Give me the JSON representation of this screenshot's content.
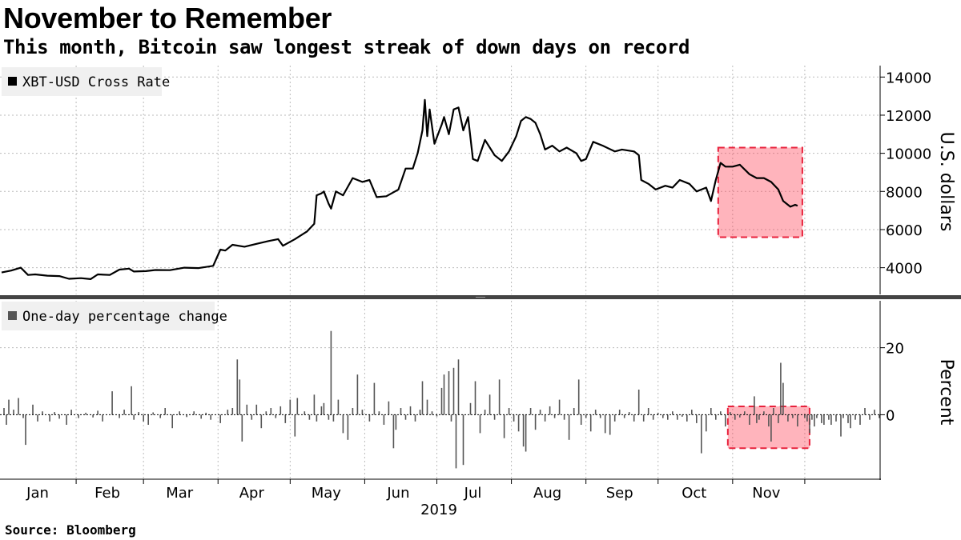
{
  "title": "November to Remember",
  "subtitle": "This month, Bitcoin saw longest streak of down days on record",
  "source": "Source: Bloomberg",
  "chart_data": [
    {
      "type": "line",
      "legend": "XBT-USD Cross Rate",
      "legend_position": "top-left",
      "ylabel": "U.S. dollars",
      "ylim": [
        2600,
        14600
      ],
      "yticks": [
        "4000",
        "6000",
        "8000",
        "10000",
        "12000",
        "14000"
      ],
      "grid": true,
      "color": "#000000",
      "highlight": {
        "x_start": "2019-10-26",
        "x_end": "2019-11-30",
        "y_start": 5600,
        "y_end": 10300,
        "color": "#ff3b4e"
      },
      "points": [
        [
          "2019-01-01",
          3750
        ],
        [
          "2019-01-05",
          3850
        ],
        [
          "2019-01-09",
          4000
        ],
        [
          "2019-01-12",
          3620
        ],
        [
          "2019-01-15",
          3650
        ],
        [
          "2019-01-20",
          3580
        ],
        [
          "2019-01-25",
          3560
        ],
        [
          "2019-01-29",
          3420
        ],
        [
          "2019-02-03",
          3450
        ],
        [
          "2019-02-07",
          3400
        ],
        [
          "2019-02-10",
          3650
        ],
        [
          "2019-02-15",
          3620
        ],
        [
          "2019-02-19",
          3900
        ],
        [
          "2019-02-23",
          3950
        ],
        [
          "2019-02-25",
          3800
        ],
        [
          "2019-03-02",
          3820
        ],
        [
          "2019-03-06",
          3880
        ],
        [
          "2019-03-12",
          3870
        ],
        [
          "2019-03-18",
          4000
        ],
        [
          "2019-03-24",
          3980
        ],
        [
          "2019-03-30",
          4100
        ],
        [
          "2019-04-02",
          4950
        ],
        [
          "2019-04-04",
          4900
        ],
        [
          "2019-04-07",
          5200
        ],
        [
          "2019-04-12",
          5100
        ],
        [
          "2019-04-17",
          5250
        ],
        [
          "2019-04-22",
          5400
        ],
        [
          "2019-04-26",
          5500
        ],
        [
          "2019-04-28",
          5150
        ],
        [
          "2019-05-03",
          5500
        ],
        [
          "2019-05-08",
          5900
        ],
        [
          "2019-05-11",
          6300
        ],
        [
          "2019-05-12",
          7800
        ],
        [
          "2019-05-14",
          7900
        ],
        [
          "2019-05-15",
          8000
        ],
        [
          "2019-05-17",
          7350
        ],
        [
          "2019-05-18",
          7100
        ],
        [
          "2019-05-20",
          8000
        ],
        [
          "2019-05-23",
          7800
        ],
        [
          "2019-05-27",
          8700
        ],
        [
          "2019-05-31",
          8500
        ],
        [
          "2019-06-03",
          8600
        ],
        [
          "2019-06-06",
          7700
        ],
        [
          "2019-06-10",
          7750
        ],
        [
          "2019-06-15",
          8100
        ],
        [
          "2019-06-18",
          9200
        ],
        [
          "2019-06-21",
          9200
        ],
        [
          "2019-06-23",
          10000
        ],
        [
          "2019-06-25",
          11200
        ],
        [
          "2019-06-26",
          12800
        ],
        [
          "2019-06-27",
          10900
        ],
        [
          "2019-06-28",
          12300
        ],
        [
          "2019-06-30",
          10500
        ],
        [
          "2019-07-03",
          11500
        ],
        [
          "2019-07-04",
          11900
        ],
        [
          "2019-07-06",
          11000
        ],
        [
          "2019-07-08",
          12300
        ],
        [
          "2019-07-10",
          12400
        ],
        [
          "2019-07-12",
          11200
        ],
        [
          "2019-07-14",
          11900
        ],
        [
          "2019-07-16",
          9700
        ],
        [
          "2019-07-18",
          9600
        ],
        [
          "2019-07-21",
          10700
        ],
        [
          "2019-07-25",
          9900
        ],
        [
          "2019-07-28",
          9600
        ],
        [
          "2019-07-31",
          10100
        ],
        [
          "2019-08-03",
          10900
        ],
        [
          "2019-08-05",
          11700
        ],
        [
          "2019-08-07",
          11900
        ],
        [
          "2019-08-09",
          11800
        ],
        [
          "2019-08-11",
          11600
        ],
        [
          "2019-08-13",
          11000
        ],
        [
          "2019-08-15",
          10200
        ],
        [
          "2019-08-18",
          10400
        ],
        [
          "2019-08-21",
          10100
        ],
        [
          "2019-08-24",
          10300
        ],
        [
          "2019-08-28",
          10000
        ],
        [
          "2019-08-30",
          9600
        ],
        [
          "2019-09-01",
          9700
        ],
        [
          "2019-09-04",
          10600
        ],
        [
          "2019-09-08",
          10400
        ],
        [
          "2019-09-13",
          10100
        ],
        [
          "2019-09-16",
          10200
        ],
        [
          "2019-09-21",
          10100
        ],
        [
          "2019-09-23",
          9900
        ],
        [
          "2019-09-24",
          8600
        ],
        [
          "2019-09-27",
          8400
        ],
        [
          "2019-09-30",
          8100
        ],
        [
          "2019-10-04",
          8300
        ],
        [
          "2019-10-07",
          8200
        ],
        [
          "2019-10-10",
          8600
        ],
        [
          "2019-10-14",
          8400
        ],
        [
          "2019-10-17",
          8000
        ],
        [
          "2019-10-21",
          8200
        ],
        [
          "2019-10-23",
          7500
        ],
        [
          "2019-10-25",
          8600
        ],
        [
          "2019-10-27",
          9500
        ],
        [
          "2019-10-29",
          9300
        ],
        [
          "2019-11-01",
          9300
        ],
        [
          "2019-11-04",
          9400
        ],
        [
          "2019-11-08",
          8900
        ],
        [
          "2019-11-11",
          8700
        ],
        [
          "2019-11-14",
          8700
        ],
        [
          "2019-11-17",
          8500
        ],
        [
          "2019-11-20",
          8100
        ],
        [
          "2019-11-22",
          7500
        ],
        [
          "2019-11-25",
          7200
        ],
        [
          "2019-11-27",
          7300
        ],
        [
          "2019-11-28",
          7250
        ]
      ]
    },
    {
      "type": "bar",
      "legend": "One-day percentage change",
      "legend_position": "top-left",
      "ylabel": "Percent",
      "ylim": [
        -19,
        34
      ],
      "yticks": [
        "0",
        "20"
      ],
      "grid": true,
      "color": "#555555",
      "highlight": {
        "x_start": "2019-10-30",
        "x_end": "2019-12-03",
        "y_start": -10,
        "y_end": 2.5,
        "color": "#ff3b4e"
      },
      "points": [
        [
          "2019-01-02",
          2
        ],
        [
          "2019-01-03",
          -3
        ],
        [
          "2019-01-04",
          4.5
        ],
        [
          "2019-01-06",
          1.5
        ],
        [
          "2019-01-08",
          5
        ],
        [
          "2019-01-10",
          -1
        ],
        [
          "2019-01-11",
          -9
        ],
        [
          "2019-01-14",
          3
        ],
        [
          "2019-01-16",
          -2
        ],
        [
          "2019-01-18",
          1
        ],
        [
          "2019-01-21",
          -2
        ],
        [
          "2019-01-23",
          0.8
        ],
        [
          "2019-01-25",
          -1.2
        ],
        [
          "2019-01-28",
          -3
        ],
        [
          "2019-01-30",
          1.5
        ],
        [
          "2019-02-02",
          -1
        ],
        [
          "2019-02-05",
          0.6
        ],
        [
          "2019-02-08",
          -0.8
        ],
        [
          "2019-02-10",
          1.2
        ],
        [
          "2019-02-12",
          -2
        ],
        [
          "2019-02-16",
          7
        ],
        [
          "2019-02-19",
          -1
        ],
        [
          "2019-02-21",
          1.5
        ],
        [
          "2019-02-24",
          8.5
        ],
        [
          "2019-02-25",
          -1.5
        ],
        [
          "2019-02-27",
          0.8
        ],
        [
          "2019-03-01",
          -2
        ],
        [
          "2019-03-03",
          -3
        ],
        [
          "2019-03-05",
          0.7
        ],
        [
          "2019-03-08",
          -1
        ],
        [
          "2019-03-10",
          2
        ],
        [
          "2019-03-13",
          -4
        ],
        [
          "2019-03-16",
          1
        ],
        [
          "2019-03-19",
          -0.7
        ],
        [
          "2019-03-22",
          1
        ],
        [
          "2019-03-25",
          -1.2
        ],
        [
          "2019-03-27",
          0.6
        ],
        [
          "2019-03-29",
          -1.5
        ],
        [
          "2019-04-02",
          -2.5
        ],
        [
          "2019-04-05",
          1.5
        ],
        [
          "2019-04-07",
          2
        ],
        [
          "2019-04-09",
          16.5
        ],
        [
          "2019-04-10",
          10.5
        ],
        [
          "2019-04-11",
          -8
        ],
        [
          "2019-04-13",
          3
        ],
        [
          "2019-04-15",
          -1.5
        ],
        [
          "2019-04-17",
          3
        ],
        [
          "2019-04-19",
          -4
        ],
        [
          "2019-04-21",
          1
        ],
        [
          "2019-04-23",
          2
        ],
        [
          "2019-04-25",
          -1
        ],
        [
          "2019-04-27",
          2.5
        ],
        [
          "2019-04-29",
          -2.5
        ],
        [
          "2019-05-01",
          4.5
        ],
        [
          "2019-05-03",
          -6.5
        ],
        [
          "2019-05-04",
          5
        ],
        [
          "2019-05-07",
          1
        ],
        [
          "2019-05-09",
          -1.5
        ],
        [
          "2019-05-11",
          6
        ],
        [
          "2019-05-12",
          -2
        ],
        [
          "2019-05-14",
          2.5
        ],
        [
          "2019-05-15",
          3.5
        ],
        [
          "2019-05-17",
          -1.5
        ],
        [
          "2019-05-18",
          25
        ],
        [
          "2019-05-19",
          -2
        ],
        [
          "2019-05-21",
          4.5
        ],
        [
          "2019-05-23",
          -5.5
        ],
        [
          "2019-05-25",
          -7.5
        ],
        [
          "2019-05-27",
          2
        ],
        [
          "2019-05-29",
          12
        ],
        [
          "2019-05-31",
          1.5
        ],
        [
          "2019-06-03",
          -2
        ],
        [
          "2019-06-05",
          9.5
        ],
        [
          "2019-06-07",
          1
        ],
        [
          "2019-06-09",
          -3
        ],
        [
          "2019-06-11",
          4
        ],
        [
          "2019-06-13",
          -10
        ],
        [
          "2019-06-14",
          -4.5
        ],
        [
          "2019-06-16",
          2
        ],
        [
          "2019-06-18",
          -1.5
        ],
        [
          "2019-06-20",
          2.5
        ],
        [
          "2019-06-22",
          -2
        ],
        [
          "2019-06-24",
          1.5
        ],
        [
          "2019-06-25",
          10
        ],
        [
          "2019-06-27",
          4.5
        ],
        [
          "2019-06-29",
          1
        ],
        [
          "2019-07-01",
          -0.5
        ],
        [
          "2019-07-03",
          8
        ],
        [
          "2019-07-04",
          12
        ],
        [
          "2019-07-06",
          13
        ],
        [
          "2019-07-07",
          -2
        ],
        [
          "2019-07-08",
          14
        ],
        [
          "2019-07-09",
          -16
        ],
        [
          "2019-07-10",
          16.5
        ],
        [
          "2019-07-12",
          -15
        ],
        [
          "2019-07-15",
          3.5
        ],
        [
          "2019-07-17",
          10
        ],
        [
          "2019-07-19",
          -5.5
        ],
        [
          "2019-07-21",
          1.5
        ],
        [
          "2019-07-23",
          6
        ],
        [
          "2019-07-25",
          -1.5
        ],
        [
          "2019-07-27",
          10.5
        ],
        [
          "2019-07-29",
          -7
        ],
        [
          "2019-07-31",
          2
        ],
        [
          "2019-08-02",
          -2
        ],
        [
          "2019-08-04",
          -5
        ],
        [
          "2019-08-06",
          -9.5
        ],
        [
          "2019-08-07",
          -11
        ],
        [
          "2019-08-09",
          2
        ],
        [
          "2019-08-11",
          -4.5
        ],
        [
          "2019-08-13",
          1.5
        ],
        [
          "2019-08-15",
          -2
        ],
        [
          "2019-08-17",
          2.5
        ],
        [
          "2019-08-19",
          -1
        ],
        [
          "2019-08-21",
          4.5
        ],
        [
          "2019-08-23",
          -1.5
        ],
        [
          "2019-08-25",
          -7.5
        ],
        [
          "2019-08-27",
          2
        ],
        [
          "2019-08-29",
          10.5
        ],
        [
          "2019-08-30",
          -3
        ],
        [
          "2019-09-01",
          -1
        ],
        [
          "2019-09-03",
          -5
        ],
        [
          "2019-09-05",
          1.5
        ],
        [
          "2019-09-07",
          -1
        ],
        [
          "2019-09-09",
          -5.5
        ],
        [
          "2019-09-11",
          -6
        ],
        [
          "2019-09-13",
          -2
        ],
        [
          "2019-09-15",
          1.5
        ],
        [
          "2019-09-17",
          -1
        ],
        [
          "2019-09-19",
          0.8
        ],
        [
          "2019-09-21",
          -2
        ],
        [
          "2019-09-23",
          7.5
        ],
        [
          "2019-09-25",
          -2
        ],
        [
          "2019-09-27",
          2
        ],
        [
          "2019-09-29",
          -1.5
        ],
        [
          "2019-10-01",
          0.6
        ],
        [
          "2019-10-03",
          -1
        ],
        [
          "2019-10-05",
          -1.5
        ],
        [
          "2019-10-07",
          1
        ],
        [
          "2019-10-09",
          -1.5
        ],
        [
          "2019-10-11",
          -0.6
        ],
        [
          "2019-10-13",
          -2
        ],
        [
          "2019-10-15",
          1.5
        ],
        [
          "2019-10-17",
          -2.5
        ],
        [
          "2019-10-19",
          -11.5
        ],
        [
          "2019-10-21",
          -5
        ],
        [
          "2019-10-23",
          2
        ],
        [
          "2019-10-25",
          -1.5
        ],
        [
          "2019-10-27",
          1
        ],
        [
          "2019-10-29",
          -3.5
        ],
        [
          "2019-10-31",
          0.8
        ],
        [
          "2019-11-02",
          -1.5
        ],
        [
          "2019-11-04",
          -0.8
        ],
        [
          "2019-11-06",
          1
        ],
        [
          "2019-11-08",
          -3
        ],
        [
          "2019-11-10",
          5.5
        ],
        [
          "2019-11-11",
          -2.5
        ],
        [
          "2019-11-12",
          -1.5
        ],
        [
          "2019-11-14",
          1
        ],
        [
          "2019-11-16",
          -3.5
        ],
        [
          "2019-11-17",
          -8
        ],
        [
          "2019-11-18",
          2
        ],
        [
          "2019-11-20",
          -2.5
        ],
        [
          "2019-11-21",
          15.5
        ],
        [
          "2019-11-22",
          9.5
        ],
        [
          "2019-11-24",
          -2
        ],
        [
          "2019-11-26",
          -1
        ],
        [
          "2019-11-28",
          -3.5
        ],
        [
          "2019-12-01",
          -1
        ],
        [
          "2019-12-02",
          -2
        ],
        [
          "2019-12-03",
          -5.5
        ],
        [
          "2019-12-04",
          -1.5
        ],
        [
          "2019-12-05",
          -3.5
        ],
        [
          "2019-12-06",
          -1
        ],
        [
          "2019-12-08",
          -2.5
        ],
        [
          "2019-12-09",
          -3
        ],
        [
          "2019-12-11",
          -1.5
        ],
        [
          "2019-12-12",
          -3
        ],
        [
          "2019-12-14",
          -2
        ],
        [
          "2019-12-16",
          -6.5
        ],
        [
          "2019-12-17",
          -1
        ],
        [
          "2019-12-19",
          -2.5
        ],
        [
          "2019-12-20",
          -4
        ],
        [
          "2019-12-22",
          -1.5
        ],
        [
          "2019-12-24",
          -3
        ],
        [
          "2019-12-26",
          2
        ],
        [
          "2019-12-28",
          -1.5
        ],
        [
          "2019-12-30",
          1.5
        ],
        [
          "2020-01-01",
          -1
        ]
      ]
    }
  ],
  "x_axis": {
    "months": [
      "Jan",
      "Feb",
      "Mar",
      "Apr",
      "May",
      "Jun",
      "Jul",
      "Aug",
      "Sep",
      "Oct",
      "Nov"
    ],
    "year": "2019"
  }
}
